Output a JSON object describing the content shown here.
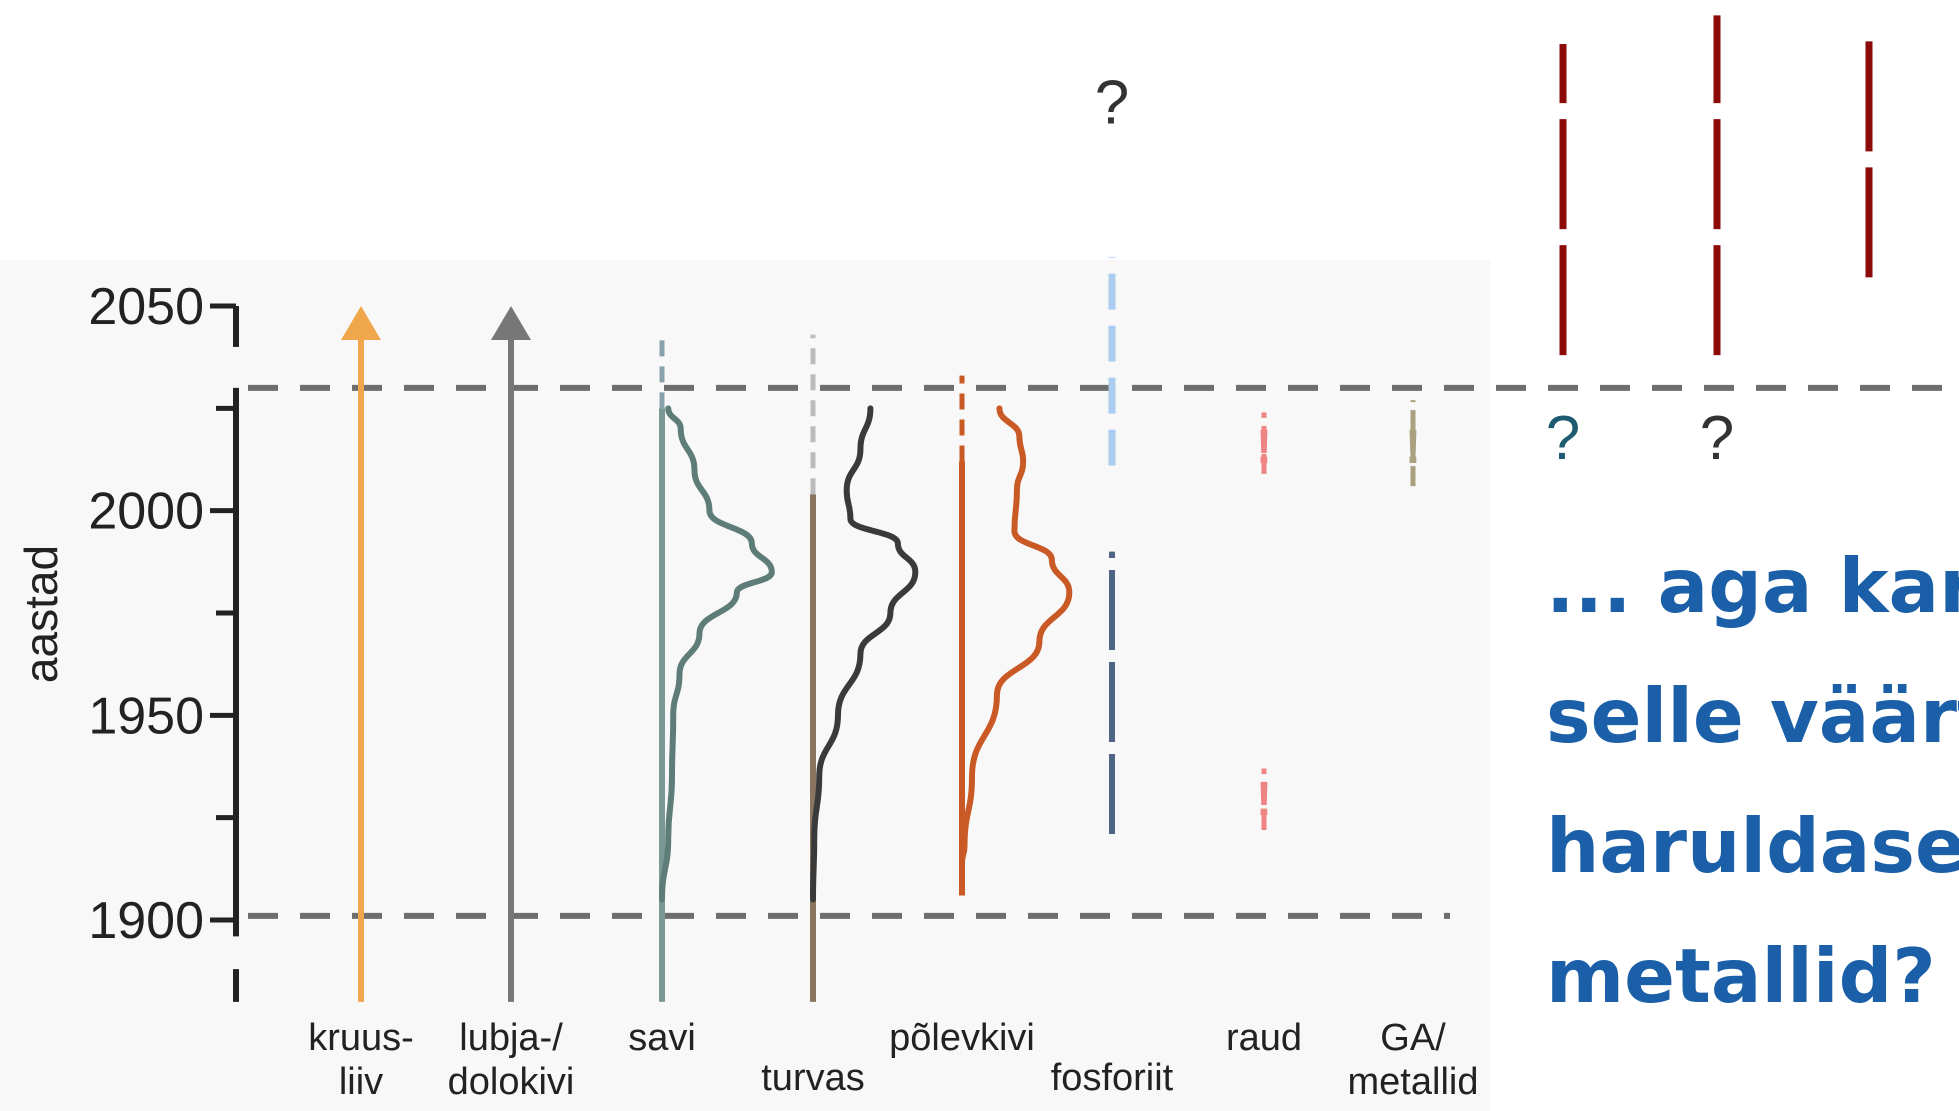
{
  "chart_data": {
    "type": "line",
    "ylabel": "aastad",
    "ylim": [
      1880,
      2050
    ],
    "yticks": [
      1900,
      1950,
      2000,
      2050
    ],
    "reference_lines": [
      1901,
      2030
    ],
    "grid": false,
    "series": [
      {
        "name": "kruus-\nliiv",
        "label_lines": [
          "kruus-",
          "liiv"
        ],
        "color": "#f0a64a",
        "kind": "arrow",
        "extent": [
          1880,
          2050
        ]
      },
      {
        "name": "lubja-/\ndolokivi",
        "label_lines": [
          "lubja-/",
          "dolokivi"
        ],
        "color": "#777777",
        "kind": "arrow",
        "extent": [
          1880,
          2050
        ]
      },
      {
        "name": "savi",
        "label_lines": [
          "savi"
        ],
        "color": "#5e7d78",
        "base_color": "#7a9894",
        "dash_color": "#8aa2ad",
        "kind": "curve",
        "history": [
          1880,
          2025
        ],
        "projection": [
          2025,
          2043
        ],
        "curve": [
          [
            0.0,
            1905
          ],
          [
            0.05,
            1920
          ],
          [
            0.08,
            1935
          ],
          [
            0.09,
            1950
          ],
          [
            0.14,
            1960
          ],
          [
            0.3,
            1970
          ],
          [
            0.6,
            1980
          ],
          [
            0.88,
            1985
          ],
          [
            0.72,
            1992
          ],
          [
            0.38,
            2000
          ],
          [
            0.26,
            2010
          ],
          [
            0.15,
            2020
          ],
          [
            0.05,
            2025
          ]
        ]
      },
      {
        "name": "turvas",
        "label_lines": [
          "turvas"
        ],
        "color": "#3a3a3a",
        "base_color": "#8a7560",
        "dash_color": "#bbbbbb",
        "kind": "curve",
        "history": [
          1880,
          2004
        ],
        "projection": [
          2004,
          2043
        ],
        "curve": [
          [
            0.0,
            1905
          ],
          [
            0.01,
            1920
          ],
          [
            0.05,
            1935
          ],
          [
            0.2,
            1950
          ],
          [
            0.38,
            1965
          ],
          [
            0.62,
            1975
          ],
          [
            0.82,
            1985
          ],
          [
            0.68,
            1992
          ],
          [
            0.3,
            1998
          ],
          [
            0.27,
            2005
          ],
          [
            0.38,
            2015
          ],
          [
            0.46,
            2025
          ]
        ]
      },
      {
        "name": "põlevkivi",
        "label_lines": [
          "põlevkivi"
        ],
        "color": "#c95a26",
        "base_color": "#c95a26",
        "dash_color": "#c95a26",
        "kind": "curve",
        "history": [
          1906,
          2012
        ],
        "projection": [
          2012,
          2033
        ],
        "curve": [
          [
            0.0,
            1914
          ],
          [
            0.02,
            1918
          ],
          [
            0.08,
            1935
          ],
          [
            0.28,
            1955
          ],
          [
            0.62,
            1968
          ],
          [
            0.86,
            1980
          ],
          [
            0.72,
            1988
          ],
          [
            0.42,
            1995
          ],
          [
            0.44,
            2005
          ],
          [
            0.49,
            2012
          ],
          [
            0.46,
            2018
          ],
          [
            0.3,
            2025
          ]
        ]
      },
      {
        "name": "fosforiit",
        "label_lines": [
          "fosforiit"
        ],
        "color": "#4f6587",
        "dash_color": "#aacdf0",
        "kind": "bar",
        "history": [
          1921,
          1990
        ],
        "projection": [
          2011,
          2062
        ]
      },
      {
        "name": "raud",
        "label_lines": [
          "raud"
        ],
        "color": "#ee8583",
        "kind": "marks",
        "segments": [
          [
            1922,
            1937
          ],
          [
            2009,
            2024
          ]
        ]
      },
      {
        "name": "GA/\nmetallid",
        "label_lines": [
          "GA/",
          "metallid"
        ],
        "color": "#a9a17f",
        "kind": "marks",
        "segments": [
          [
            2006,
            2027
          ]
        ]
      },
      {
        "name": "",
        "label_lines": [],
        "color": "#8b0a0a",
        "kind": "future",
        "segments": [
          [
            2038,
            2114
          ]
        ]
      },
      {
        "name": "",
        "label_lines": [],
        "color": "#8b0a0a",
        "kind": "future",
        "segments": [
          [
            2038,
            2121
          ]
        ]
      },
      {
        "name": "",
        "label_lines": [],
        "color": "#8b0a0a",
        "kind": "future",
        "segments": [
          [
            2057,
            2117
          ]
        ]
      }
    ],
    "annotations": [
      {
        "id": "q-fosforiit",
        "text": "?",
        "color": "#333333",
        "x_col": "fosforiit",
        "y": 2100
      },
      {
        "id": "q-red-1",
        "text": "?",
        "color": "#1f5b70",
        "x_col": 8,
        "y": 2018
      },
      {
        "id": "q-red-2",
        "text": "?",
        "color": "#333333",
        "x_col": 9,
        "y": 2018
      },
      {
        "id": "excl-raud-upper",
        "text": "!",
        "color": "#ee8583",
        "x_col": "raud",
        "y": 2016
      },
      {
        "id": "excl-raud-lower",
        "text": "!",
        "color": "#ee8583",
        "x_col": "raud",
        "y": 1930
      },
      {
        "id": "excl-ga",
        "text": "!",
        "color": "#a9a17f",
        "x_col": "GA/",
        "y": 2016
      }
    ]
  },
  "callout": {
    "lines": [
      "... aga karb",
      "selle väärtu",
      "haruldased",
      "metallid?"
    ]
  }
}
